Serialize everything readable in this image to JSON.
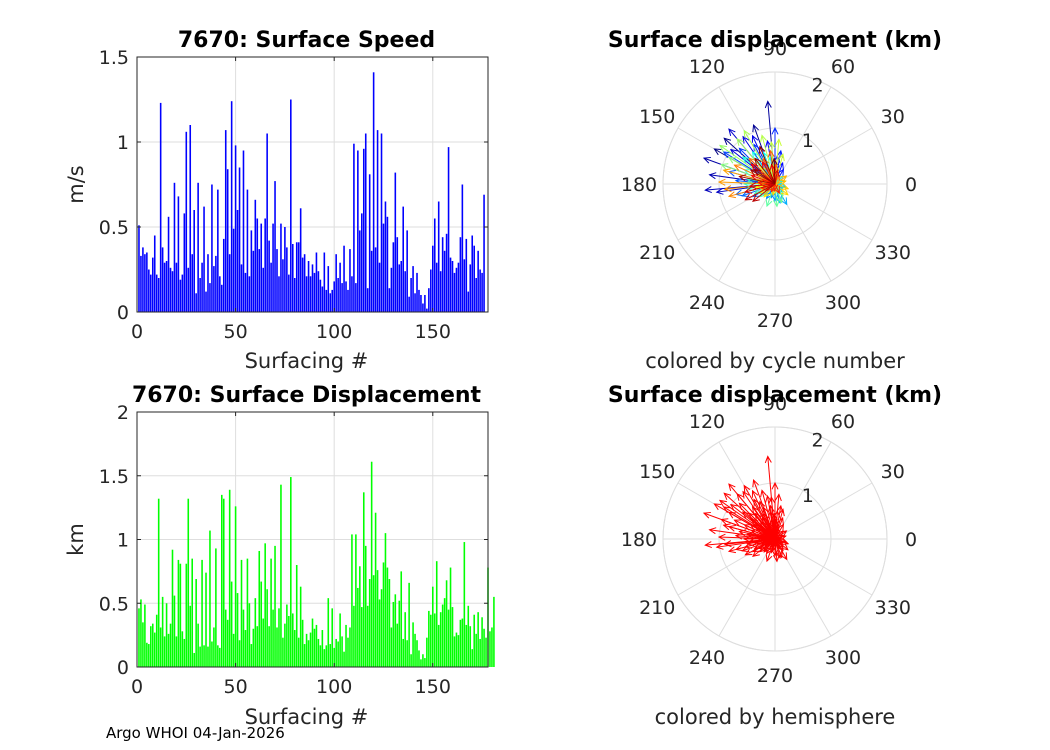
{
  "footer": "Argo WHOI 04-Jan-2026",
  "chart_data": [
    {
      "type": "bar",
      "title": "7670: Surface Speed",
      "xlabel": "Surfacing #",
      "ylabel": "m/s",
      "xlim": [
        0,
        178
      ],
      "ylim": [
        0,
        1.5
      ],
      "xticks": [
        0,
        50,
        100,
        150
      ],
      "yticks": [
        0,
        0.5,
        1,
        1.5
      ],
      "ytick_labels": [
        "0",
        "0.5",
        "1",
        "1.5"
      ],
      "color": "#0000ff",
      "values": [
        0.51,
        0.33,
        0.38,
        0.34,
        0.35,
        0.25,
        0.22,
        0.32,
        0.45,
        0.22,
        0.2,
        1.23,
        0.38,
        0.29,
        0.3,
        0.56,
        0.26,
        0.24,
        0.76,
        0.29,
        0.68,
        0.19,
        0.22,
        0.58,
        1.06,
        0.26,
        1.1,
        0.34,
        0.6,
        0.11,
        0.76,
        0.2,
        0.29,
        0.62,
        0.12,
        0.34,
        0.17,
        0.75,
        0.27,
        0.33,
        0.72,
        0.21,
        0.16,
        0.43,
        1.07,
        0.84,
        0.34,
        1.24,
        0.49,
        0.98,
        0.6,
        0.85,
        0.28,
        0.95,
        0.23,
        0.72,
        0.21,
        0.48,
        0.36,
        0.66,
        0.55,
        0.37,
        0.52,
        0.26,
        0.55,
        1.05,
        0.42,
        0.29,
        0.52,
        0.77,
        0.37,
        0.21,
        0.52,
        0.31,
        0.5,
        0.38,
        0.22,
        1.25,
        0.4,
        0.2,
        0.41,
        0.41,
        0.61,
        0.32,
        0.34,
        0.21,
        0.3,
        0.21,
        0.28,
        0.23,
        0.35,
        0.24,
        0.19,
        0.15,
        0.35,
        0.13,
        0.27,
        0.11,
        0.13,
        0.18,
        0.34,
        0.2,
        0.29,
        0.17,
        0.39,
        0.18,
        0.13,
        0.37,
        0.21,
        0.99,
        0.17,
        0.95,
        0.48,
        0.58,
        0.96,
        1.05,
        0.14,
        0.81,
        0.36,
        1.41,
        0.38,
        1.07,
        0.29,
        1.05,
        0.52,
        0.65,
        0.56,
        0.14,
        0.26,
        0.41,
        0.82,
        0.44,
        0.28,
        0.3,
        0.62,
        0.24,
        0.48,
        0.09,
        0.2,
        0.27,
        0.11,
        0.23,
        0.13,
        0.1,
        0.05,
        0.1,
        0.02,
        0.14,
        0.25,
        0.39,
        0.55,
        0.29,
        0.65,
        0.24,
        0.44,
        0.36,
        0.46,
        0.97,
        0.32,
        0.3,
        0.23,
        0.26,
        0.29,
        0.44,
        0.75,
        0.31,
        0.43,
        0.12,
        0.28,
        0.45,
        0.39,
        0.2,
        0.36,
        0.25,
        0.23,
        0.69
      ]
    },
    {
      "type": "bar",
      "title": "7670: Surface Displacement",
      "xlabel": "Surfacing #",
      "ylabel": "km",
      "xlim": [
        0,
        178
      ],
      "ylim": [
        0,
        2
      ],
      "xticks": [
        0,
        50,
        100,
        150
      ],
      "yticks": [
        0,
        0.5,
        1,
        1.5,
        2
      ],
      "ytick_labels": [
        "0",
        "0.5",
        "1",
        "1.5",
        "2"
      ],
      "color": "#00ff00",
      "values": [
        0.46,
        0.53,
        0.35,
        0.49,
        0.19,
        0.18,
        0.32,
        0.34,
        0.27,
        0.41,
        1.32,
        0.31,
        0.55,
        0.24,
        0.5,
        0.26,
        0.34,
        0.92,
        0.56,
        0.24,
        0.84,
        0.81,
        0.28,
        0.22,
        0.81,
        1.32,
        0.48,
        0.85,
        0.11,
        0.69,
        0.34,
        0.16,
        0.84,
        0.17,
        0.74,
        0.16,
        1.07,
        0.2,
        0.31,
        0.93,
        0.17,
        0.15,
        1.35,
        1.32,
        0.45,
        0.37,
        1.39,
        0.67,
        0.26,
        1.26,
        0.58,
        0.21,
        0.84,
        0.45,
        0.29,
        0.85,
        0.5,
        0.18,
        0.3,
        0.54,
        0.32,
        0.91,
        0.67,
        0.38,
        0.97,
        0.61,
        0.32,
        0.85,
        0.45,
        0.95,
        0.31,
        0.46,
        1.43,
        0.23,
        0.34,
        0.49,
        0.4,
        1.49,
        0.42,
        0.29,
        0.8,
        0.23,
        0.63,
        0.37,
        0.18,
        0.26,
        0.21,
        0.27,
        0.38,
        0.3,
        0.33,
        0.22,
        0.17,
        0.29,
        0.14,
        0.17,
        0.54,
        0.18,
        0.46,
        0.15,
        0.22,
        0.2,
        0.42,
        0.24,
        0.12,
        0.33,
        0.23,
        0.31,
        1.04,
        0.48,
        1.04,
        0.62,
        0.79,
        0.47,
        1.37,
        0.95,
        0.48,
        0.69,
        1.61,
        0.72,
        1.21,
        0.76,
        0.53,
        0.61,
        0.82,
        1.05,
        0.78,
        0.69,
        0.31,
        0.51,
        0.57,
        0.34,
        0.52,
        0.75,
        0.22,
        0.43,
        0.21,
        0.66,
        0.1,
        0.35,
        0.26,
        0.21,
        0.13,
        0.06,
        0.1,
        0.07,
        0.23,
        0.44,
        0.41,
        0.63,
        0.42,
        0.83,
        0.33,
        0.43,
        0.49,
        0.54,
        0.68,
        0.45,
        0.78,
        0.47,
        0.24,
        0.27,
        0.25,
        0.37,
        0.38,
        0.98,
        0.33,
        0.48,
        0.32,
        0.14,
        0.41,
        0.26,
        0.43,
        0.22,
        0.39,
        0.3,
        0.23,
        0.78,
        0.28,
        0.31,
        0.55
      ]
    },
    {
      "type": "polar-quiver",
      "title": "Surface displacement (km)",
      "caption": "colored by cycle number",
      "rlim": [
        0,
        2
      ],
      "rticks": [
        1,
        2
      ],
      "angle_ticks": [
        0,
        30,
        60,
        90,
        120,
        150,
        180,
        210,
        240,
        270,
        300,
        330
      ],
      "colormap": "jet by cycle number",
      "vectors": [
        [
          150,
          1.25
        ],
        [
          138,
          1.22
        ],
        [
          110,
          1.12
        ],
        [
          95,
          1.48
        ],
        [
          160,
          1.35
        ],
        [
          172,
          1.18
        ],
        [
          185,
          1.25
        ],
        [
          188,
          1.05
        ],
        [
          130,
          1.28
        ],
        [
          142,
          1.0
        ],
        [
          124,
          1.02
        ],
        [
          115,
          0.95
        ],
        [
          100,
          0.78
        ],
        [
          85,
          0.5
        ],
        [
          70,
          0.4
        ],
        [
          60,
          0.3
        ],
        [
          80,
          0.6
        ],
        [
          90,
          1.0
        ],
        [
          118,
          0.8
        ],
        [
          135,
          0.9
        ],
        [
          148,
          1.08
        ],
        [
          165,
          0.85
        ],
        [
          175,
          0.7
        ],
        [
          195,
          0.72
        ],
        [
          200,
          0.62
        ],
        [
          210,
          0.45
        ],
        [
          225,
          0.28
        ],
        [
          240,
          0.3
        ],
        [
          255,
          0.25
        ],
        [
          270,
          0.3
        ],
        [
          285,
          0.35
        ],
        [
          300,
          0.42
        ],
        [
          315,
          0.2
        ],
        [
          330,
          0.15
        ],
        [
          345,
          0.2
        ],
        [
          355,
          0.1
        ],
        [
          5,
          0.1
        ],
        [
          20,
          0.15
        ],
        [
          45,
          0.2
        ],
        [
          100,
          0.5
        ],
        [
          110,
          0.6
        ],
        [
          125,
          0.7
        ],
        [
          140,
          0.75
        ],
        [
          155,
          0.6
        ],
        [
          170,
          0.5
        ],
        [
          180,
          0.55
        ],
        [
          190,
          0.5
        ],
        [
          205,
          0.4
        ],
        [
          220,
          0.35
        ],
        [
          250,
          0.42
        ],
        [
          275,
          0.4
        ],
        [
          290,
          0.35
        ],
        [
          305,
          0.25
        ],
        [
          160,
          1.02
        ],
        [
          150,
          0.95
        ],
        [
          145,
          1.2
        ],
        [
          130,
          1.05
        ],
        [
          120,
          1.1
        ],
        [
          105,
          0.9
        ],
        [
          95,
          0.75
        ],
        [
          85,
          0.8
        ],
        [
          75,
          0.55
        ],
        [
          110,
          0.3
        ],
        [
          130,
          0.4
        ],
        [
          150,
          0.35
        ],
        [
          170,
          0.3
        ],
        [
          190,
          0.35
        ],
        [
          210,
          0.3
        ],
        [
          230,
          0.3
        ],
        [
          260,
          0.2
        ],
        [
          320,
          0.3
        ],
        [
          340,
          0.25
        ],
        [
          15,
          0.2
        ],
        [
          35,
          0.25
        ],
        [
          60,
          0.15
        ],
        [
          165,
          0.95
        ],
        [
          178,
          1.0
        ],
        [
          186,
          0.9
        ],
        [
          195,
          0.85
        ],
        [
          155,
          0.8
        ],
        [
          135,
          0.65
        ],
        [
          115,
          0.5
        ],
        [
          98,
          0.6
        ],
        [
          88,
          0.35
        ],
        [
          72,
          0.2
        ],
        [
          200,
          0.25
        ],
        [
          215,
          0.2
        ],
        [
          245,
          0.15
        ],
        [
          265,
          0.12
        ],
        [
          295,
          0.18
        ],
        [
          175,
          0.3
        ],
        [
          160,
          0.45
        ],
        [
          140,
          0.55
        ],
        [
          120,
          0.45
        ],
        [
          100,
          0.35
        ],
        [
          80,
          0.25
        ],
        [
          185,
          0.45
        ],
        [
          195,
          0.55
        ],
        [
          208,
          0.6
        ],
        [
          218,
          0.5
        ],
        [
          150,
          0.5
        ],
        [
          168,
          0.65
        ],
        [
          145,
          0.45
        ],
        [
          128,
          0.58
        ],
        [
          112,
          0.72
        ],
        [
          92,
          0.45
        ]
      ]
    },
    {
      "type": "polar-quiver",
      "title": "Surface displacement (km)",
      "caption": "colored by hemisphere",
      "rlim": [
        0,
        2
      ],
      "rticks": [
        1,
        2
      ],
      "angle_ticks": [
        0,
        30,
        60,
        90,
        120,
        150,
        180,
        210,
        240,
        270,
        300,
        330
      ],
      "color": "#ff0000",
      "vectors": [
        [
          150,
          1.25
        ],
        [
          138,
          1.22
        ],
        [
          110,
          1.12
        ],
        [
          95,
          1.48
        ],
        [
          160,
          1.35
        ],
        [
          172,
          1.18
        ],
        [
          185,
          1.25
        ],
        [
          188,
          1.05
        ],
        [
          130,
          1.28
        ],
        [
          142,
          1.0
        ],
        [
          124,
          1.02
        ],
        [
          115,
          0.95
        ],
        [
          100,
          0.78
        ],
        [
          85,
          0.5
        ],
        [
          70,
          0.4
        ],
        [
          60,
          0.3
        ],
        [
          80,
          0.6
        ],
        [
          90,
          1.0
        ],
        [
          118,
          0.8
        ],
        [
          135,
          0.9
        ],
        [
          148,
          1.08
        ],
        [
          165,
          0.85
        ],
        [
          175,
          0.7
        ],
        [
          195,
          0.72
        ],
        [
          200,
          0.62
        ],
        [
          210,
          0.45
        ],
        [
          225,
          0.28
        ],
        [
          240,
          0.3
        ],
        [
          255,
          0.25
        ],
        [
          270,
          0.3
        ],
        [
          285,
          0.35
        ],
        [
          300,
          0.42
        ],
        [
          315,
          0.2
        ],
        [
          330,
          0.15
        ],
        [
          345,
          0.2
        ],
        [
          355,
          0.1
        ],
        [
          5,
          0.1
        ],
        [
          20,
          0.15
        ],
        [
          45,
          0.2
        ],
        [
          100,
          0.5
        ],
        [
          110,
          0.6
        ],
        [
          125,
          0.7
        ],
        [
          140,
          0.75
        ],
        [
          155,
          0.6
        ],
        [
          170,
          0.5
        ],
        [
          180,
          0.55
        ],
        [
          190,
          0.5
        ],
        [
          205,
          0.4
        ],
        [
          220,
          0.35
        ],
        [
          250,
          0.42
        ],
        [
          275,
          0.4
        ],
        [
          290,
          0.35
        ],
        [
          305,
          0.25
        ],
        [
          160,
          1.02
        ],
        [
          150,
          0.95
        ],
        [
          145,
          1.2
        ],
        [
          130,
          1.05
        ],
        [
          120,
          1.1
        ],
        [
          105,
          0.9
        ],
        [
          95,
          0.75
        ],
        [
          85,
          0.8
        ],
        [
          75,
          0.55
        ],
        [
          110,
          0.3
        ],
        [
          130,
          0.4
        ],
        [
          150,
          0.35
        ],
        [
          170,
          0.3
        ],
        [
          190,
          0.35
        ],
        [
          210,
          0.3
        ],
        [
          230,
          0.3
        ],
        [
          260,
          0.2
        ],
        [
          320,
          0.3
        ],
        [
          340,
          0.25
        ],
        [
          15,
          0.2
        ],
        [
          35,
          0.25
        ],
        [
          60,
          0.15
        ],
        [
          165,
          0.95
        ],
        [
          178,
          1.0
        ],
        [
          186,
          0.9
        ],
        [
          195,
          0.85
        ],
        [
          155,
          0.8
        ],
        [
          135,
          0.65
        ],
        [
          115,
          0.5
        ],
        [
          98,
          0.6
        ],
        [
          88,
          0.35
        ],
        [
          72,
          0.2
        ],
        [
          200,
          0.25
        ],
        [
          215,
          0.2
        ],
        [
          245,
          0.15
        ],
        [
          265,
          0.12
        ],
        [
          295,
          0.18
        ],
        [
          175,
          0.3
        ],
        [
          160,
          0.45
        ],
        [
          140,
          0.55
        ],
        [
          120,
          0.45
        ],
        [
          100,
          0.35
        ],
        [
          80,
          0.25
        ],
        [
          185,
          0.45
        ],
        [
          195,
          0.55
        ],
        [
          208,
          0.6
        ],
        [
          218,
          0.5
        ],
        [
          150,
          0.5
        ],
        [
          168,
          0.65
        ],
        [
          145,
          0.45
        ],
        [
          128,
          0.58
        ],
        [
          112,
          0.72
        ],
        [
          92,
          0.45
        ]
      ]
    }
  ]
}
